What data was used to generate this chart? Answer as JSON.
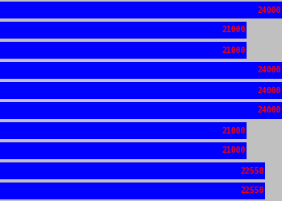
{
  "values": [
    24000,
    21000,
    21000,
    24000,
    24000,
    24000,
    21000,
    21000,
    22550,
    22550
  ],
  "max_value": 24000,
  "bar_color": "#0000FF",
  "label_color": "#FF0000",
  "bg_color": "#C0C0C0",
  "label_fontsize": 7,
  "label_fontfamily": "monospace",
  "figwidth": 3.5,
  "figheight": 2.5,
  "dpi": 100
}
